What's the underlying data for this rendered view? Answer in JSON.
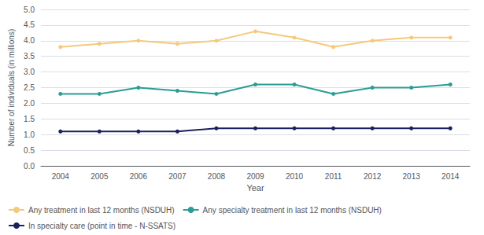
{
  "chart_data": {
    "type": "line",
    "xlabel": "Year",
    "ylabel": "Number of individuals (in millions)",
    "categories": [
      2004,
      2005,
      2006,
      2007,
      2008,
      2009,
      2010,
      2011,
      2012,
      2013,
      2014
    ],
    "series": [
      {
        "name": "Any treatment in last 12 months (NSDUH)",
        "color": "#f5c97a",
        "marker": "circle",
        "values": [
          3.8,
          3.9,
          4.0,
          3.9,
          4.0,
          4.3,
          4.1,
          3.8,
          4.0,
          4.1,
          4.1
        ]
      },
      {
        "name": "Any specialty treatment in last 12 months (NSDUH)",
        "color": "#2a9d96",
        "marker": "circle",
        "values": [
          2.3,
          2.3,
          2.5,
          2.4,
          2.3,
          2.6,
          2.6,
          2.3,
          2.5,
          2.5,
          2.6
        ]
      },
      {
        "name": "In specialty care (point in time - N-SSATS)",
        "color": "#1a2060",
        "marker": "circle",
        "values": [
          1.1,
          1.1,
          1.1,
          1.1,
          1.2,
          1.2,
          1.2,
          1.2,
          1.2,
          1.2,
          1.2
        ]
      }
    ],
    "ylim": [
      0.0,
      5.0
    ],
    "yticks": [
      {
        "value": 0,
        "label": "0.0"
      },
      0.5,
      {
        "value": 1,
        "label": "1.0"
      },
      1.5,
      {
        "value": 2,
        "label": "2.0"
      },
      2.5,
      {
        "value": 3,
        "label": "3.0"
      },
      3.5,
      {
        "value": 4,
        "label": "4.0"
      },
      4.5,
      {
        "value": 5,
        "label": "5.0"
      }
    ],
    "grid": true,
    "legend": "lower left"
  }
}
